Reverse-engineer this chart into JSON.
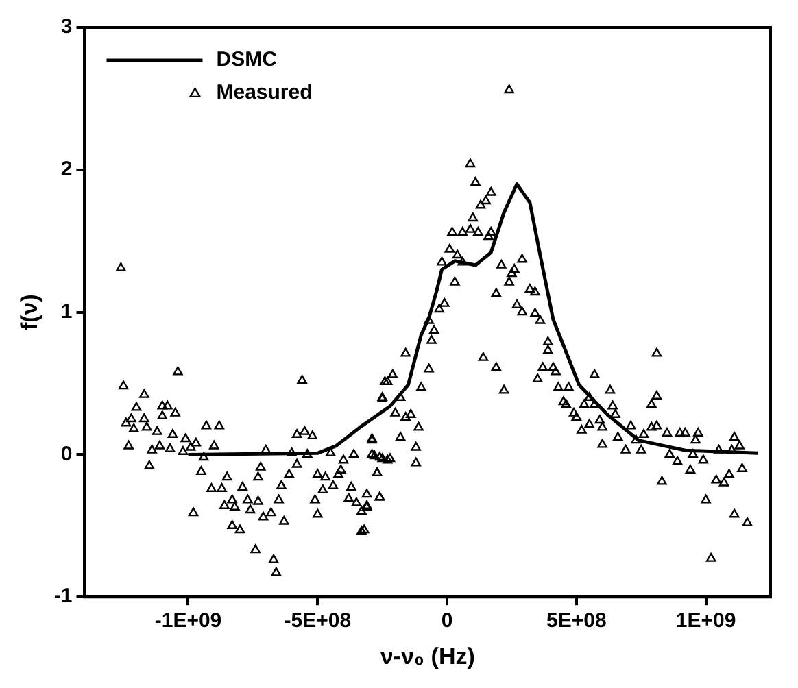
{
  "chart_data": {
    "type": "scatter",
    "xlabel": "ν-ν₀ (Hz)",
    "ylabel": "f(ν)",
    "xlim": [
      -1400000000.0,
      1250000000.0
    ],
    "ylim": [
      -1,
      3
    ],
    "xticks": [
      {
        "value": -1000000000.0,
        "label": "-1E+09"
      },
      {
        "value": -500000000.0,
        "label": "-5E+08"
      },
      0,
      {
        "value": 500000000.0,
        "label": "5E+08"
      },
      {
        "value": 1000000000.0,
        "label": "1E+09"
      }
    ],
    "yticks": [
      -1,
      0,
      1,
      2,
      3
    ],
    "grid": false,
    "legend": "top left",
    "series": [
      {
        "name": "DSMC",
        "type": "line",
        "color": "#000000",
        "marker": "none",
        "line_style": "solid",
        "x": [
          -1000000000.0,
          -500000000.0,
          -430000000.0,
          -330000000.0,
          -220000000.0,
          -150000000.0,
          -100000000.0,
          -70000000.0,
          -40000000.0,
          -20000000.0,
          30000000.0,
          110000000.0,
          170000000.0,
          220000000.0,
          270000000.0,
          320000000.0,
          360000000.0,
          410000000.0,
          510000000.0,
          620000000.0,
          740000000.0,
          920000000.0,
          1200000000.0
        ],
        "values": [
          0,
          0.01,
          0.06,
          0.2,
          0.34,
          0.49,
          0.84,
          0.96,
          1.15,
          1.3,
          1.36,
          1.33,
          1.42,
          1.7,
          1.9,
          1.77,
          1.4,
          0.95,
          0.49,
          0.28,
          0.1,
          0.03,
          0.01
        ]
      },
      {
        "name": "Measured",
        "type": "scatter",
        "color": "#000000",
        "marker": "triangle",
        "x": [
          -1250000000.0,
          -1040000000.0,
          -1170000000.0,
          -1240000000.0,
          -1220000000.0,
          -1200000000.0,
          -1210000000.0,
          -1170000000.0,
          -1160000000.0,
          -1230000000.0,
          -1120000000.0,
          -1140000000.0,
          -1150000000.0,
          -1100000000.0,
          -1080000000.0,
          -1100000000.0,
          -1050000000.0,
          -1110000000.0,
          -1070000000.0,
          -1060000000.0,
          -1020000000.0,
          -1010000000.0,
          -990000000.0,
          -970000000.0,
          -980000000.0,
          -950000000.0,
          -940000000.0,
          -930000000.0,
          -880000000.0,
          -900000000.0,
          -910000000.0,
          -870000000.0,
          -850000000.0,
          -860000000.0,
          -830000000.0,
          -820000000.0,
          -830000000.0,
          -800000000.0,
          -790000000.0,
          -770000000.0,
          -760000000.0,
          -740000000.0,
          -730000000.0,
          -730000000.0,
          -720000000.0,
          -700000000.0,
          -710000000.0,
          -680000000.0,
          -670000000.0,
          -660000000.0,
          -650000000.0,
          -640000000.0,
          -630000000.0,
          -610000000.0,
          -600000000.0,
          -580000000.0,
          -560000000.0,
          -580000000.0,
          -550000000.0,
          -520000000.0,
          -540000000.0,
          -510000000.0,
          -500000000.0,
          -500000000.0,
          -470000000.0,
          -480000000.0,
          -450000000.0,
          -440000000.0,
          -420000000.0,
          -410000000.0,
          -400000000.0,
          -380000000.0,
          -370000000.0,
          -360000000.0,
          -350000000.0,
          -330000000.0,
          -330000000.0,
          -310000000.0,
          -290000000.0,
          -290000000.0,
          -270000000.0,
          -260000000.0,
          -250000000.0,
          -240000000.0,
          -260000000.0,
          -230000000.0,
          -70000000.0,
          -50000000.0,
          -60000000.0,
          -160000000.0,
          -70000000.0,
          -100000000.0,
          -210000000.0,
          -230000000.0,
          -250000000.0,
          -180000000.0,
          -200000000.0,
          -160000000.0,
          -140000000.0,
          -110000000.0,
          -180000000.0,
          -290000000.0,
          -280000000.0,
          -250000000.0,
          -220000000.0,
          -120000000.0,
          -120000000.0,
          -270000000.0,
          -310000000.0,
          -260000000.0,
          -310000000.0,
          -320000000.0,
          140000000.0,
          190000000.0,
          220000000.0,
          360000000.0,
          390000000.0,
          390000000.0,
          370000000.0,
          410000000.0,
          420000000.0,
          350000000.0,
          430000000.0,
          470000000.0,
          570000000.0,
          450000000.0,
          460000000.0,
          490000000.0,
          500000000.0,
          530000000.0,
          550000000.0,
          570000000.0,
          630000000.0,
          640000000.0,
          650000000.0,
          520000000.0,
          550000000.0,
          590000000.0,
          600000000.0,
          600000000.0,
          660000000.0,
          690000000.0,
          710000000.0,
          730000000.0,
          750000000.0,
          760000000.0,
          790000000.0,
          810000000.0,
          790000000.0,
          810000000.0,
          810000000.0,
          830000000.0,
          850000000.0,
          860000000.0,
          890000000.0,
          900000000.0,
          920000000.0,
          940000000.0,
          960000000.0,
          970000000.0,
          950000000.0,
          990000000.0,
          1000000000.0,
          1020000000.0,
          1040000000.0,
          1050000000.0,
          1070000000.0,
          1090000000.0,
          1110000000.0,
          1100000000.0,
          1130000000.0,
          1110000000.0,
          1140000000.0,
          1160000000.0,
          240000000.0,
          90000000.0,
          110000000.0,
          170000000.0,
          150000000.0,
          130000000.0,
          100000000.0,
          20000000.0,
          60000000.0,
          90000000.0,
          120000000.0,
          170000000.0,
          160000000.0,
          10000000.0,
          40000000.0,
          -20000000.0,
          60000000.0,
          30000000.0,
          210000000.0,
          290000000.0,
          260000000.0,
          250000000.0,
          240000000.0,
          190000000.0,
          320000000.0,
          340000000.0,
          270000000.0,
          290000000.0,
          340000000.0,
          -10000000.0,
          -30000000.0,
          -1260000000.0
        ],
        "values": [
          0.48,
          0.58,
          0.42,
          0.22,
          0.25,
          0.33,
          0.18,
          0.25,
          0.19,
          0.06,
          0.16,
          0.03,
          -0.08,
          0.34,
          0.34,
          0.27,
          0.29,
          0.06,
          0.04,
          0.14,
          0.02,
          0.11,
          0.05,
          0.08,
          -0.41,
          -0.12,
          -0.02,
          0.2,
          0.2,
          0.06,
          -0.24,
          -0.24,
          -0.16,
          -0.36,
          -0.32,
          -0.37,
          -0.5,
          -0.53,
          -0.23,
          -0.32,
          -0.39,
          -0.67,
          -0.33,
          -0.16,
          -0.09,
          0.03,
          -0.44,
          -0.41,
          -0.74,
          -0.83,
          -0.32,
          -0.22,
          -0.47,
          -0.14,
          0.01,
          -0.07,
          0.52,
          0.14,
          0.16,
          0.13,
          0.0,
          -0.32,
          -0.42,
          -0.14,
          -0.16,
          -0.25,
          0.01,
          -0.22,
          -0.14,
          -0.11,
          -0.04,
          -0.31,
          -0.23,
          0.0,
          -0.34,
          -0.4,
          -0.54,
          -0.36,
          0.11,
          0.0,
          -0.13,
          -0.3,
          0.39,
          0.51,
          -0.02,
          -0.04,
          0.94,
          0.87,
          0.8,
          0.71,
          0.6,
          0.47,
          0.56,
          0.51,
          0.4,
          0.4,
          0.29,
          0.26,
          0.28,
          0.19,
          0.12,
          0.1,
          -0.01,
          -0.03,
          -0.03,
          0.05,
          -0.06,
          -0.13,
          -0.28,
          -0.3,
          -0.37,
          -0.53,
          0.68,
          0.61,
          0.45,
          0.94,
          0.79,
          0.73,
          0.61,
          0.61,
          0.58,
          0.53,
          0.47,
          0.47,
          0.56,
          0.37,
          0.35,
          0.29,
          0.26,
          0.35,
          0.4,
          0.35,
          0.45,
          0.34,
          0.28,
          0.17,
          0.21,
          0.24,
          0.19,
          0.07,
          0.12,
          0.03,
          0.2,
          0.1,
          0.03,
          0.14,
          0.19,
          0.2,
          0.35,
          0.41,
          0.71,
          -0.19,
          0.15,
          0.0,
          -0.05,
          0.15,
          0.15,
          -0.11,
          0.1,
          0.15,
          0.0,
          -0.04,
          -0.32,
          -0.73,
          -0.18,
          0.03,
          -0.2,
          -0.14,
          0.12,
          0.03,
          0.06,
          -0.42,
          -0.1,
          -0.48,
          2.56,
          2.04,
          1.91,
          1.84,
          1.78,
          1.75,
          1.66,
          1.56,
          1.56,
          1.58,
          1.56,
          1.56,
          1.53,
          1.44,
          1.4,
          1.35,
          1.35,
          1.21,
          1.33,
          1.37,
          1.3,
          1.27,
          1.21,
          1.13,
          1.16,
          1.14,
          1.05,
          1.0,
          0.99,
          1.06,
          1.02,
          1.31
        ]
      }
    ]
  }
}
